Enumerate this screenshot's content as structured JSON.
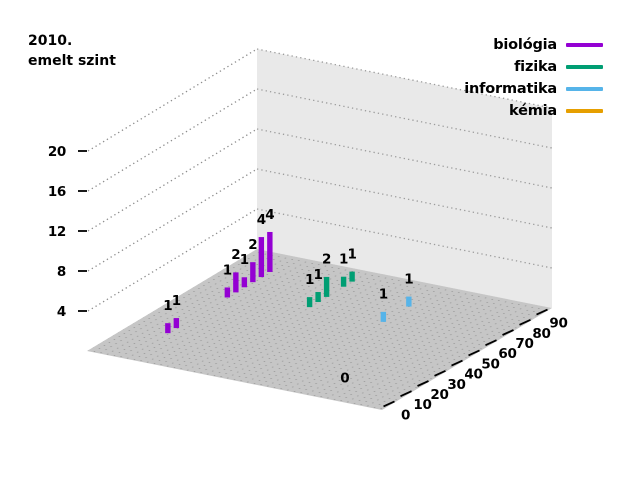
{
  "title": {
    "lines": [
      "2010.",
      "emelt szint"
    ]
  },
  "legend": {
    "items": [
      {
        "label": "biológia",
        "color": "#9400d3"
      },
      {
        "label": "fizika",
        "color": "#009e73"
      },
      {
        "label": "informatika",
        "color": "#56b4e9"
      },
      {
        "label": "kémia",
        "color": "#e69f00"
      }
    ]
  },
  "chart_data": {
    "type": "bar",
    "view": "3d",
    "title": "2010. emelt szint",
    "x_axis": {
      "ticks": [
        0,
        10,
        20,
        30,
        40,
        50,
        60,
        70,
        80,
        90
      ],
      "range": [
        0,
        90
      ]
    },
    "z_axis": {
      "ticks": [
        4,
        8,
        12,
        16,
        20
      ],
      "range": [
        0,
        20
      ]
    },
    "grid": "dotted",
    "legend_position": "top-right",
    "series": [
      {
        "name": "biológia",
        "color": "#9400d3",
        "points": [
          {
            "x": 20,
            "n": 1
          },
          {
            "x": 25,
            "n": 1
          },
          {
            "x": 55,
            "n": 1
          },
          {
            "x": 60,
            "n": 2
          },
          {
            "x": 65,
            "n": 1
          },
          {
            "x": 70,
            "n": 2
          },
          {
            "x": 75,
            "n": 4
          },
          {
            "x": 80,
            "n": 4
          }
        ]
      },
      {
        "name": "fizika",
        "color": "#009e73",
        "points": [
          {
            "x": 60,
            "n": 1
          },
          {
            "x": 65,
            "n": 1
          },
          {
            "x": 70,
            "n": 2
          },
          {
            "x": 80,
            "n": 1
          },
          {
            "x": 85,
            "n": 1
          }
        ]
      },
      {
        "name": "informatika",
        "color": "#56b4e9",
        "points": [
          {
            "x": 60,
            "n": 1
          },
          {
            "x": 75,
            "n": 1
          }
        ]
      },
      {
        "name": "kémia",
        "color": "#e69f00",
        "points": [
          {
            "x": 0,
            "n": 0
          }
        ]
      }
    ]
  },
  "colors": {
    "background": "#ffffff",
    "floor": "#c6c6c6",
    "floor_dot": "#8a8a8a",
    "wall": "#e9e9e9",
    "wall_grid": "#9c9c9c",
    "left_grid": "#8c8c8c",
    "tick": "#000000"
  }
}
